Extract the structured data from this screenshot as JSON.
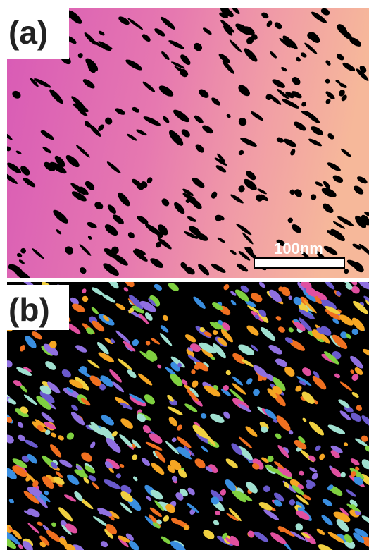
{
  "panels": [
    {
      "label": "(a)"
    },
    {
      "label": "(b)"
    }
  ],
  "scale_bar": {
    "label": "100nm"
  }
}
